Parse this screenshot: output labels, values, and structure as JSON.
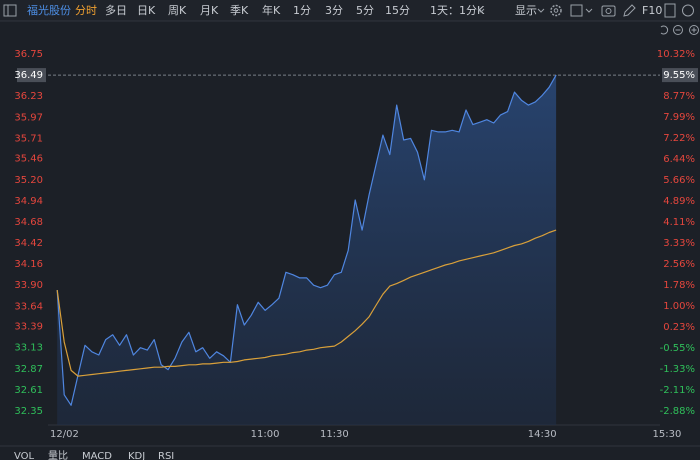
{
  "toolbar": {
    "stock": "福光股份",
    "tabs": [
      "分时",
      "多日",
      "日K",
      "周K",
      "月K",
      "季K",
      "年K",
      "1分",
      "3分",
      "5分",
      "15分",
      "1天：1分K"
    ],
    "display": "显示",
    "f10": "F10"
  },
  "chart_data": {
    "type": "line",
    "x": [
      0,
      3,
      6,
      9,
      12,
      15,
      18,
      21,
      24,
      27,
      30,
      33,
      36,
      39,
      42,
      45,
      48,
      51,
      54,
      57,
      60,
      63,
      66,
      69,
      72,
      75,
      78,
      81,
      84,
      87,
      90,
      93,
      96,
      99,
      102,
      105,
      108,
      111,
      114,
      117,
      120,
      123,
      126,
      129,
      132,
      135,
      138,
      141,
      144,
      147,
      150,
      153,
      156,
      159,
      162,
      165,
      168,
      171,
      174,
      177,
      180,
      183,
      186,
      189,
      192,
      195,
      198,
      201,
      204,
      207,
      210,
      213,
      216
    ],
    "series": [
      {
        "color": "#4f86e0",
        "values": [
          33.84,
          32.55,
          32.42,
          32.79,
          33.16,
          33.08,
          33.04,
          33.23,
          33.29,
          33.16,
          33.29,
          33.04,
          33.13,
          33.1,
          33.23,
          32.92,
          32.86,
          33.0,
          33.2,
          33.32,
          33.08,
          33.13,
          33.0,
          33.08,
          33.03,
          32.95,
          33.66,
          33.41,
          33.53,
          33.69,
          33.59,
          33.66,
          33.74,
          34.06,
          34.03,
          33.99,
          33.99,
          33.9,
          33.87,
          33.9,
          34.03,
          34.06,
          34.33,
          34.95,
          34.58,
          35.01,
          35.38,
          35.75,
          35.51,
          36.12,
          35.69,
          35.71,
          35.54,
          35.2,
          35.81,
          35.79,
          35.79,
          35.81,
          35.79,
          36.06,
          35.88,
          35.91,
          35.94,
          35.9,
          36.0,
          36.04,
          36.28,
          36.18,
          36.12,
          36.16,
          36.24,
          36.34,
          36.49
        ]
      },
      {
        "color": "#d9a03a",
        "values": [
          33.84,
          33.2,
          32.85,
          32.78,
          32.79,
          32.8,
          32.81,
          32.82,
          32.83,
          32.84,
          32.85,
          32.86,
          32.87,
          32.88,
          32.89,
          32.89,
          32.9,
          32.9,
          32.91,
          32.92,
          32.92,
          32.93,
          32.93,
          32.94,
          32.95,
          32.95,
          32.96,
          32.98,
          32.99,
          33.0,
          33.01,
          33.03,
          33.04,
          33.05,
          33.07,
          33.08,
          33.1,
          33.11,
          33.13,
          33.14,
          33.15,
          33.2,
          33.27,
          33.34,
          33.42,
          33.51,
          33.65,
          33.79,
          33.89,
          33.92,
          33.96,
          34.0,
          34.03,
          34.06,
          34.09,
          34.12,
          34.15,
          34.17,
          34.2,
          34.22,
          34.24,
          34.26,
          34.28,
          34.3,
          34.33,
          34.36,
          34.39,
          34.41,
          34.44,
          34.48,
          34.51,
          34.55,
          34.58
        ]
      }
    ],
    "current_price": 36.49,
    "xlim": [
      -4,
      261
    ],
    "xticks": [
      {
        "value": 0,
        "label": "12/02"
      },
      {
        "value": 90,
        "label": "11:00"
      },
      {
        "value": 120,
        "label": "11:30"
      },
      {
        "value": 210,
        "label": "14:30"
      },
      {
        "value": 264,
        "label": "15:30"
      }
    ],
    "ylim": [
      32.35,
      36.75
    ],
    "yticks": [
      36.75,
      36.49,
      36.23,
      35.97,
      35.71,
      35.46,
      {
        "value": 35.2,
        "label": "35.20"
      },
      34.94,
      34.68,
      34.42,
      34.16,
      {
        "value": 33.9,
        "label": "33.90"
      },
      33.64,
      33.39,
      33.13,
      32.87,
      32.61,
      32.35
    ],
    "y2lim": [
      -2.88,
      10.32
    ],
    "y2ticks": [
      {
        "value": 10.32,
        "label": "10.32%"
      },
      {
        "value": 9.55,
        "label": "9.55%"
      },
      {
        "value": 8.77,
        "label": "8.77%"
      },
      {
        "value": 7.99,
        "label": "7.99%"
      },
      {
        "value": 7.22,
        "label": "7.22%"
      },
      {
        "value": 6.44,
        "label": "6.44%"
      },
      {
        "value": 5.66,
        "label": "5.66%"
      },
      {
        "value": 4.89,
        "label": "4.89%"
      },
      {
        "value": 4.11,
        "label": "4.11%"
      },
      {
        "value": 3.33,
        "label": "3.33%"
      },
      {
        "value": 2.56,
        "label": "2.56%"
      },
      {
        "value": 1.78,
        "label": "1.78%"
      },
      {
        "value": 1,
        "label": "1.00%"
      },
      {
        "value": 0.23,
        "label": "0.23%"
      },
      {
        "value": -0.55,
        "label": "-0.55%"
      },
      {
        "value": -1.33,
        "label": "-1.33%"
      },
      {
        "value": -2.11,
        "label": "-2.11%"
      },
      {
        "value": -2.88,
        "label": "-2.88%"
      }
    ],
    "up_color": "#e5463d",
    "down_color": "#2fbf5a"
  },
  "indicators": [
    "VOL",
    "量比",
    "MACD",
    "KDJ",
    "RSI"
  ]
}
